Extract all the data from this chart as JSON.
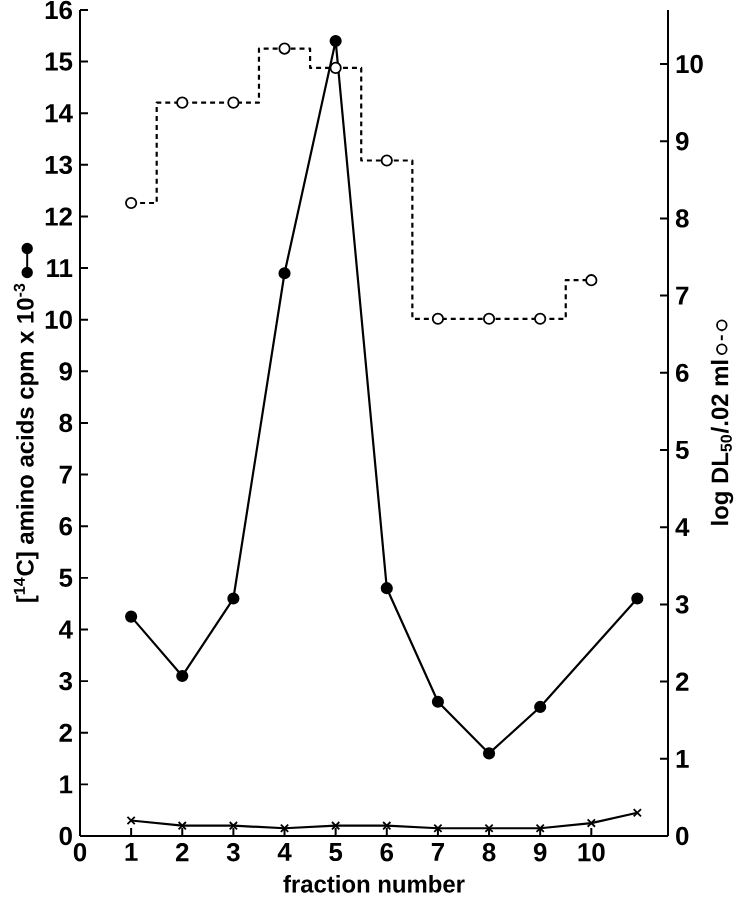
{
  "chart_data": {
    "type": "line",
    "xlabel": "fraction number",
    "ylabel": "[$^{14}$C] amino acids cpm x 10$^{-3}$",
    "y2label": "log DL$_{50}$/.02 ml",
    "xlim": [
      0,
      11.5
    ],
    "xticks": [
      0,
      1,
      2,
      3,
      4,
      5,
      6,
      7,
      8,
      9,
      10
    ],
    "ylim": [
      0,
      16
    ],
    "yticks": [
      0,
      1,
      2,
      3,
      4,
      5,
      6,
      7,
      8,
      9,
      10,
      11,
      12,
      13,
      14,
      15,
      16
    ],
    "y2lim": [
      0,
      10.7
    ],
    "y2ticks": [
      0,
      1,
      2,
      3,
      4,
      5,
      6,
      7,
      8,
      9,
      10
    ],
    "series": [
      {
        "color": "#000000",
        "marker": "circle",
        "line_style": "solid",
        "x": [
          1,
          2,
          3,
          4,
          5,
          6,
          7,
          8,
          9,
          10.9
        ],
        "values": [
          4.25,
          3.1,
          4.6,
          10.9,
          15.4,
          4.8,
          2.6,
          1.6,
          2.5,
          4.6
        ]
      },
      {
        "type": "step",
        "axis": "y2",
        "color": "#000000",
        "marker": "circle",
        "line_style": "dashed",
        "x": [
          1,
          2,
          3,
          4,
          5,
          6,
          7,
          8,
          9,
          10
        ],
        "values": [
          8.2,
          9.5,
          9.5,
          10.2,
          9.95,
          8.75,
          6.7,
          6.7,
          6.7,
          7.2
        ]
      },
      {
        "color": "#000000",
        "marker": "cross",
        "line_style": "solid",
        "x": [
          1,
          2,
          3,
          4,
          5,
          6,
          7,
          8,
          9,
          10,
          10.9
        ],
        "values": [
          0.3,
          0.2,
          0.2,
          0.15,
          0.2,
          0.2,
          0.15,
          0.15,
          0.15,
          0.25,
          0.45
        ]
      }
    ]
  }
}
